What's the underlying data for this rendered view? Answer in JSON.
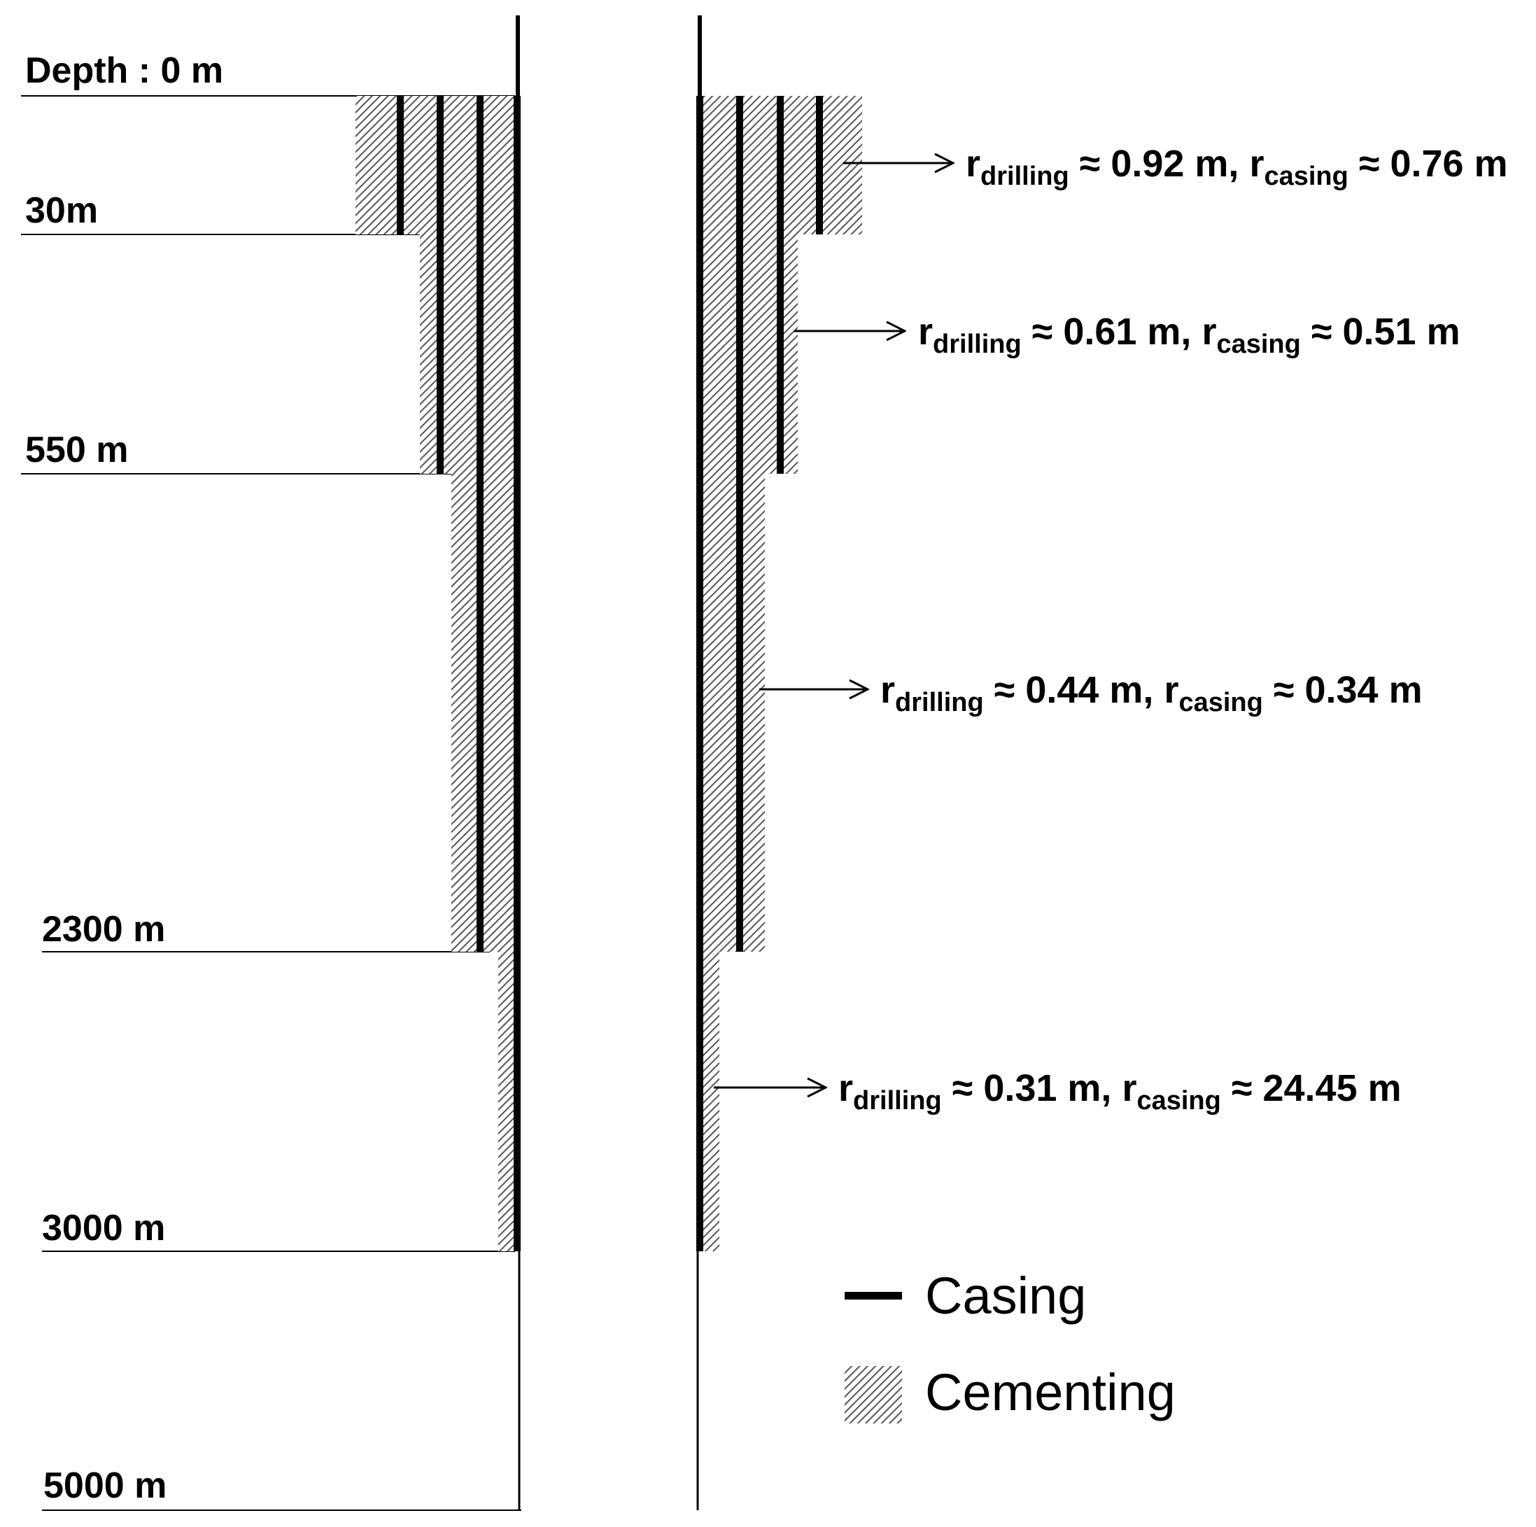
{
  "depth_labels": [
    "Depth : 0 m",
    "30m",
    "550 m",
    "2300 m",
    "3000 m",
    "5000 m"
  ],
  "annotations": [
    {
      "r": "r",
      "sub1": "drilling",
      "mid": " ≈ 0.92 m, r",
      "sub2": "casing",
      "end": " ≈ 0.76 m"
    },
    {
      "r": "r",
      "sub1": "drilling",
      "mid": " ≈ 0.61 m, r",
      "sub2": "casing",
      "end": " ≈ 0.51 m"
    },
    {
      "r": "r",
      "sub1": "drilling",
      "mid": " ≈ 0.44 m, r",
      "sub2": "casing",
      "end": " ≈ 0.34 m"
    },
    {
      "r": "r",
      "sub1": "drilling",
      "mid": " ≈ 0.31 m, r",
      "sub2": "casing",
      "end": " ≈ 24.45 m"
    }
  ],
  "legend": {
    "casing": "Casing",
    "cementing": "Cementing"
  },
  "colors": {
    "casing": "#000000",
    "cement_hatch": "#555555",
    "background": "#ffffff"
  }
}
